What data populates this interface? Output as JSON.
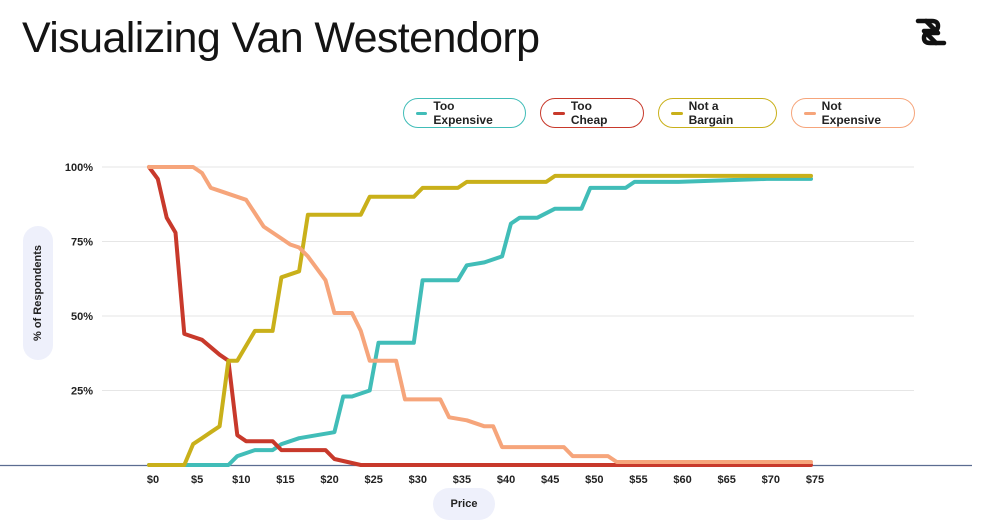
{
  "header": {
    "title": "Visualizing Van Westendorp",
    "logo_icon": "brand-logo-icon"
  },
  "chart_data": {
    "type": "line",
    "title": "Visualizing Van Westendorp",
    "xlabel": "Price",
    "ylabel": "% of Respondents",
    "xlim": [
      0,
      75
    ],
    "ylim": [
      0,
      100
    ],
    "x_ticks": [
      "$0",
      "$5",
      "$10",
      "$15",
      "$20",
      "$25",
      "$30",
      "$35",
      "$40",
      "$45",
      "$50",
      "$55",
      "$60",
      "$65",
      "$70",
      "$75"
    ],
    "y_ticks": [
      "25%",
      "50%",
      "75%",
      "100%"
    ],
    "grid": true,
    "legend_position": "top-right",
    "series": [
      {
        "name": "Too Expensive",
        "color": "#41bdb8",
        "points": [
          [
            0,
            0
          ],
          [
            7,
            0
          ],
          [
            8,
            0
          ],
          [
            9,
            0
          ],
          [
            10,
            3
          ],
          [
            12,
            5
          ],
          [
            14,
            5
          ],
          [
            15,
            7
          ],
          [
            17,
            9
          ],
          [
            19,
            10
          ],
          [
            21,
            11
          ],
          [
            22,
            23
          ],
          [
            23,
            23
          ],
          [
            24,
            24
          ],
          [
            25,
            25
          ],
          [
            26,
            41
          ],
          [
            28,
            41
          ],
          [
            30,
            41
          ],
          [
            31,
            62
          ],
          [
            33,
            62
          ],
          [
            35,
            62
          ],
          [
            36,
            67
          ],
          [
            38,
            68
          ],
          [
            40,
            70
          ],
          [
            41,
            81
          ],
          [
            42,
            83
          ],
          [
            44,
            83
          ],
          [
            46,
            86
          ],
          [
            48,
            86
          ],
          [
            49,
            86
          ],
          [
            50,
            93
          ],
          [
            52,
            93
          ],
          [
            54,
            93
          ],
          [
            55,
            95
          ],
          [
            57,
            95
          ],
          [
            60,
            95
          ],
          [
            65,
            95.5
          ],
          [
            70,
            96
          ],
          [
            75,
            96
          ]
        ]
      },
      {
        "name": "Too Cheap",
        "color": "#c8392b",
        "points": [
          [
            0,
            100
          ],
          [
            1,
            96
          ],
          [
            2,
            83
          ],
          [
            3,
            78
          ],
          [
            4,
            44
          ],
          [
            6,
            42
          ],
          [
            8,
            37
          ],
          [
            9,
            35
          ],
          [
            10,
            10
          ],
          [
            11,
            8
          ],
          [
            14,
            8
          ],
          [
            15,
            5
          ],
          [
            19,
            5
          ],
          [
            20,
            5
          ],
          [
            21,
            2
          ],
          [
            24,
            0
          ],
          [
            75,
            0
          ]
        ]
      },
      {
        "name": "Not a Bargain",
        "color": "#c9b01a",
        "points": [
          [
            0,
            0
          ],
          [
            4,
            0
          ],
          [
            5,
            7
          ],
          [
            6,
            9
          ],
          [
            7,
            11
          ],
          [
            8,
            13
          ],
          [
            9,
            35
          ],
          [
            10,
            35
          ],
          [
            12,
            45
          ],
          [
            14,
            45
          ],
          [
            15,
            63
          ],
          [
            17,
            65
          ],
          [
            18,
            84
          ],
          [
            20,
            84
          ],
          [
            22,
            84
          ],
          [
            24,
            84
          ],
          [
            25,
            90
          ],
          [
            28,
            90
          ],
          [
            30,
            90
          ],
          [
            31,
            93
          ],
          [
            33,
            93
          ],
          [
            35,
            93
          ],
          [
            36,
            95
          ],
          [
            38,
            95
          ],
          [
            40,
            95
          ],
          [
            43,
            95
          ],
          [
            45,
            95
          ],
          [
            46,
            97
          ],
          [
            50,
            97
          ],
          [
            75,
            97
          ]
        ]
      },
      {
        "name": "Not Expensive",
        "color": "#f6a57b",
        "points": [
          [
            0,
            100
          ],
          [
            5,
            100
          ],
          [
            6,
            98
          ],
          [
            7,
            93
          ],
          [
            8,
            92
          ],
          [
            9,
            91
          ],
          [
            11,
            89
          ],
          [
            13,
            80
          ],
          [
            15,
            76
          ],
          [
            16,
            74
          ],
          [
            17,
            73
          ],
          [
            18,
            70
          ],
          [
            20,
            62
          ],
          [
            21,
            51
          ],
          [
            23,
            51
          ],
          [
            24,
            45
          ],
          [
            25,
            35
          ],
          [
            27,
            35
          ],
          [
            28,
            35
          ],
          [
            29,
            22
          ],
          [
            31,
            22
          ],
          [
            33,
            22
          ],
          [
            34,
            16
          ],
          [
            36,
            15
          ],
          [
            38,
            13
          ],
          [
            39,
            13
          ],
          [
            40,
            6
          ],
          [
            41,
            6
          ],
          [
            43,
            6
          ],
          [
            45,
            6
          ],
          [
            47,
            6
          ],
          [
            48,
            3
          ],
          [
            50,
            3
          ],
          [
            52,
            3
          ],
          [
            53,
            1
          ],
          [
            54,
            1
          ],
          [
            75,
            1
          ]
        ]
      }
    ]
  }
}
